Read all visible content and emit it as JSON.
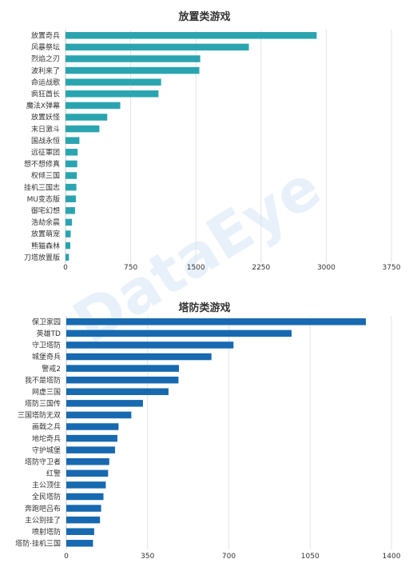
{
  "watermark": "DataEye",
  "chart_data": [
    {
      "type": "bar",
      "orientation": "horizontal",
      "title": "放置类游戏",
      "color": "#2aa5b0",
      "categories": [
        "放置奇兵",
        "风暴祭坛",
        "烈焰之刃",
        "波利来了",
        "命运战歌",
        "疯狂酋长",
        "魔法X弹幕",
        "放置妖怪",
        "末日激斗",
        "国战永恒",
        "远征軍团",
        "想不想修真",
        "权倾三国",
        "挂机三国志",
        "MU变态版",
        "御宅幻想",
        "浩劫余晨",
        "放置萌宠",
        "熊猫森林",
        "刀塔放置版"
      ],
      "values": [
        2890,
        2110,
        1550,
        1540,
        1100,
        1070,
        630,
        480,
        390,
        160,
        140,
        135,
        130,
        125,
        120,
        110,
        75,
        60,
        55,
        40
      ],
      "xlim": [
        0,
        3750
      ],
      "ticks": [
        0,
        750,
        1500,
        2250,
        3000,
        3750
      ],
      "grid": true
    },
    {
      "type": "bar",
      "orientation": "horizontal",
      "title": "塔防类游戏",
      "color": "#1769b0",
      "categories": [
        "保卫家园",
        "英雄TD",
        "守卫塔防",
        "城堡奇兵",
        "警戒2",
        "我不是塔防",
        "网虚三国",
        "塔防三国传",
        "三国塔防无双",
        "画戟之兵",
        "地坨奇兵",
        "守护城堡",
        "塔防守卫者",
        "红警",
        "主公顶住",
        "全民塔防",
        "奔跑吧吕布",
        "主公别挂了",
        "喷射塔防",
        "塔防·挂机三国"
      ],
      "values": [
        1290,
        970,
        720,
        625,
        485,
        483,
        440,
        330,
        280,
        225,
        220,
        210,
        185,
        180,
        170,
        160,
        150,
        145,
        120,
        115
      ],
      "xlim": [
        0,
        1400
      ],
      "ticks": [
        0,
        350,
        700,
        1050,
        1400
      ],
      "grid": true
    }
  ]
}
